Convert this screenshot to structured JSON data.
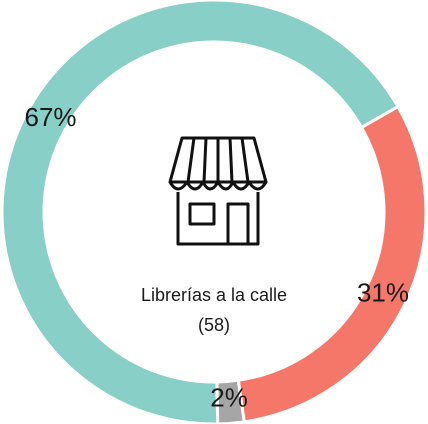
{
  "chart_data": {
    "type": "donut",
    "values": [
      67,
      31,
      2
    ],
    "value_labels": [
      "67%",
      "31%",
      "2%"
    ],
    "colors": [
      "#88cfc8",
      "#f4776a",
      "#a6a6a6"
    ],
    "center_label": "Librerías a la calle",
    "center_sublabel": "(58)"
  }
}
